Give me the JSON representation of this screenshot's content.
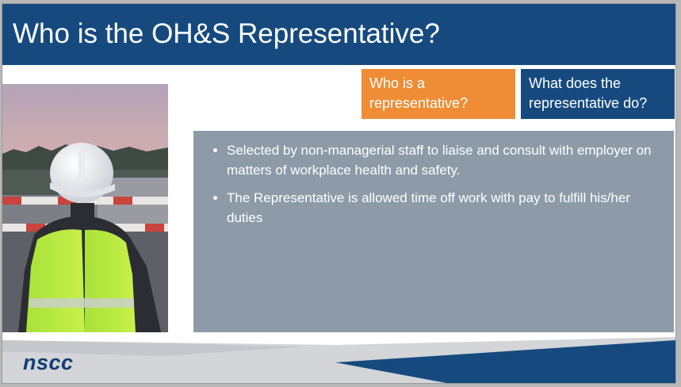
{
  "slide": {
    "title": "Who is the OH&S Representative?",
    "tabs": [
      {
        "label": "Who is a representative?",
        "color": "#ef8d36"
      },
      {
        "label": "What does the representative do?",
        "color": "#164a7f"
      }
    ],
    "bullets": [
      "Selected by non-managerial staff to liaise and consult with employer on matters of workplace health and safety.",
      "The Representative is allowed time off work with pay to fulfill his/her duties"
    ],
    "logo": "nscc"
  },
  "colors": {
    "title_bar": "#164a7f",
    "accent_orange": "#ef8d36",
    "content_box": "#8d9aa8",
    "footer_gray": "#d3d5d8"
  },
  "icons": {
    "photo": "worker-in-hard-hat-photo"
  }
}
